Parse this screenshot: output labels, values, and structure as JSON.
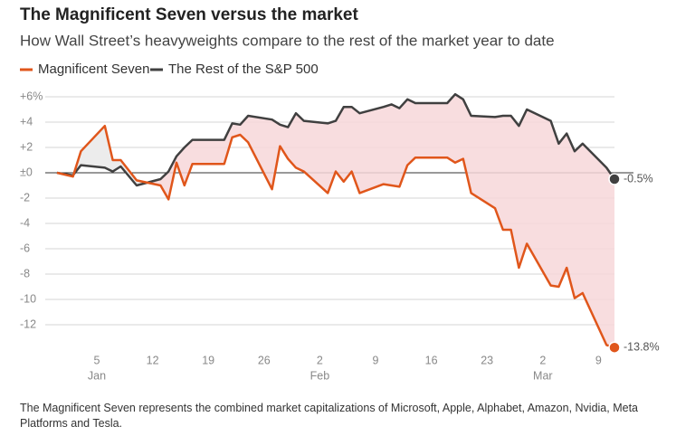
{
  "chart_data": {
    "type": "line",
    "title": "The Magnificent Seven versus the market",
    "subtitle": "How Wall Street’s heavyweights compare to the rest of the market year to date",
    "note": "The Magnificent Seven represents the combined market capitalizations of Microsoft, Apple, Alphabet, Amazon, Nvidia, Meta Platforms and Tesla.",
    "x": [
      "12-31",
      "01-02",
      "01-03",
      "01-06",
      "01-07",
      "01-08",
      "01-10",
      "01-13",
      "01-14",
      "01-15",
      "01-16",
      "01-17",
      "01-21",
      "01-22",
      "01-23",
      "01-24",
      "01-27",
      "01-28",
      "01-29",
      "01-30",
      "01-31",
      "02-03",
      "02-04",
      "02-05",
      "02-06",
      "02-07",
      "02-10",
      "02-11",
      "02-12",
      "02-13",
      "02-14",
      "02-18",
      "02-19",
      "02-20",
      "02-21",
      "02-24",
      "02-25",
      "02-26",
      "02-27",
      "02-28",
      "03-03",
      "03-04",
      "03-05",
      "03-06",
      "03-07",
      "03-10",
      "03-11"
    ],
    "series": [
      {
        "name": "Magnificent Seven",
        "color": "#e0561b",
        "end_label": "-13.8%",
        "values": [
          0,
          -0.3,
          1.7,
          3.7,
          1.0,
          1.0,
          -0.6,
          -1.0,
          -2.1,
          0.8,
          -1.0,
          0.7,
          0.7,
          2.8,
          3.0,
          2.4,
          -1.3,
          2.1,
          1.1,
          0.4,
          0.1,
          -1.6,
          0.1,
          -0.7,
          0.1,
          -1.6,
          -0.9,
          -1.0,
          -1.1,
          0.6,
          1.2,
          1.2,
          0.8,
          1.1,
          -1.6,
          -2.8,
          -4.5,
          -4.5,
          -7.5,
          -5.6,
          -8.9,
          -9.0,
          -7.5,
          -9.9,
          -9.5,
          -13.6,
          -13.8
        ]
      },
      {
        "name": "The Rest of the S&P 500",
        "color": "#404040",
        "end_label": "-0.5%",
        "values": [
          0,
          -0.2,
          0.6,
          0.4,
          0.1,
          0.5,
          -1.0,
          -0.5,
          0.1,
          1.3,
          2.0,
          2.6,
          2.6,
          3.9,
          3.8,
          4.5,
          4.2,
          3.8,
          3.6,
          4.7,
          4.1,
          3.9,
          4.1,
          5.2,
          5.2,
          4.7,
          5.2,
          5.4,
          5.1,
          5.8,
          5.5,
          5.5,
          6.2,
          5.8,
          4.5,
          4.4,
          4.5,
          4.5,
          3.7,
          5.0,
          4.1,
          2.3,
          3.1,
          1.7,
          2.3,
          0.4,
          -0.5
        ]
      }
    ],
    "xlim": [
      "12-31",
      "03-11"
    ],
    "xticks": [
      {
        "value": "01-05",
        "label": "5"
      },
      {
        "value": "01-12",
        "label": "12"
      },
      {
        "value": "01-19",
        "label": "19"
      },
      {
        "value": "01-26",
        "label": "26"
      },
      {
        "value": "02-02",
        "label": "2"
      },
      {
        "value": "02-09",
        "label": "9"
      },
      {
        "value": "02-16",
        "label": "16"
      },
      {
        "value": "02-23",
        "label": "23"
      },
      {
        "value": "03-02",
        "label": "2"
      },
      {
        "value": "03-09",
        "label": "9"
      }
    ],
    "month_labels": [
      {
        "value": "01-05",
        "label": "Jan"
      },
      {
        "value": "02-02",
        "label": "Feb"
      },
      {
        "value": "03-02",
        "label": "Mar"
      }
    ],
    "ylim": [
      -14,
      6.5
    ],
    "yticks": [
      {
        "value": 6,
        "label": "+6%"
      },
      {
        "value": 4,
        "label": "+4"
      },
      {
        "value": 2,
        "label": "+2"
      },
      {
        "value": 0,
        "label": "±0"
      },
      -2,
      -4,
      -6,
      -8,
      -10,
      -12
    ],
    "grid": true,
    "fill_between": {
      "below": "#f7d7d9",
      "above": "#ececec"
    }
  }
}
